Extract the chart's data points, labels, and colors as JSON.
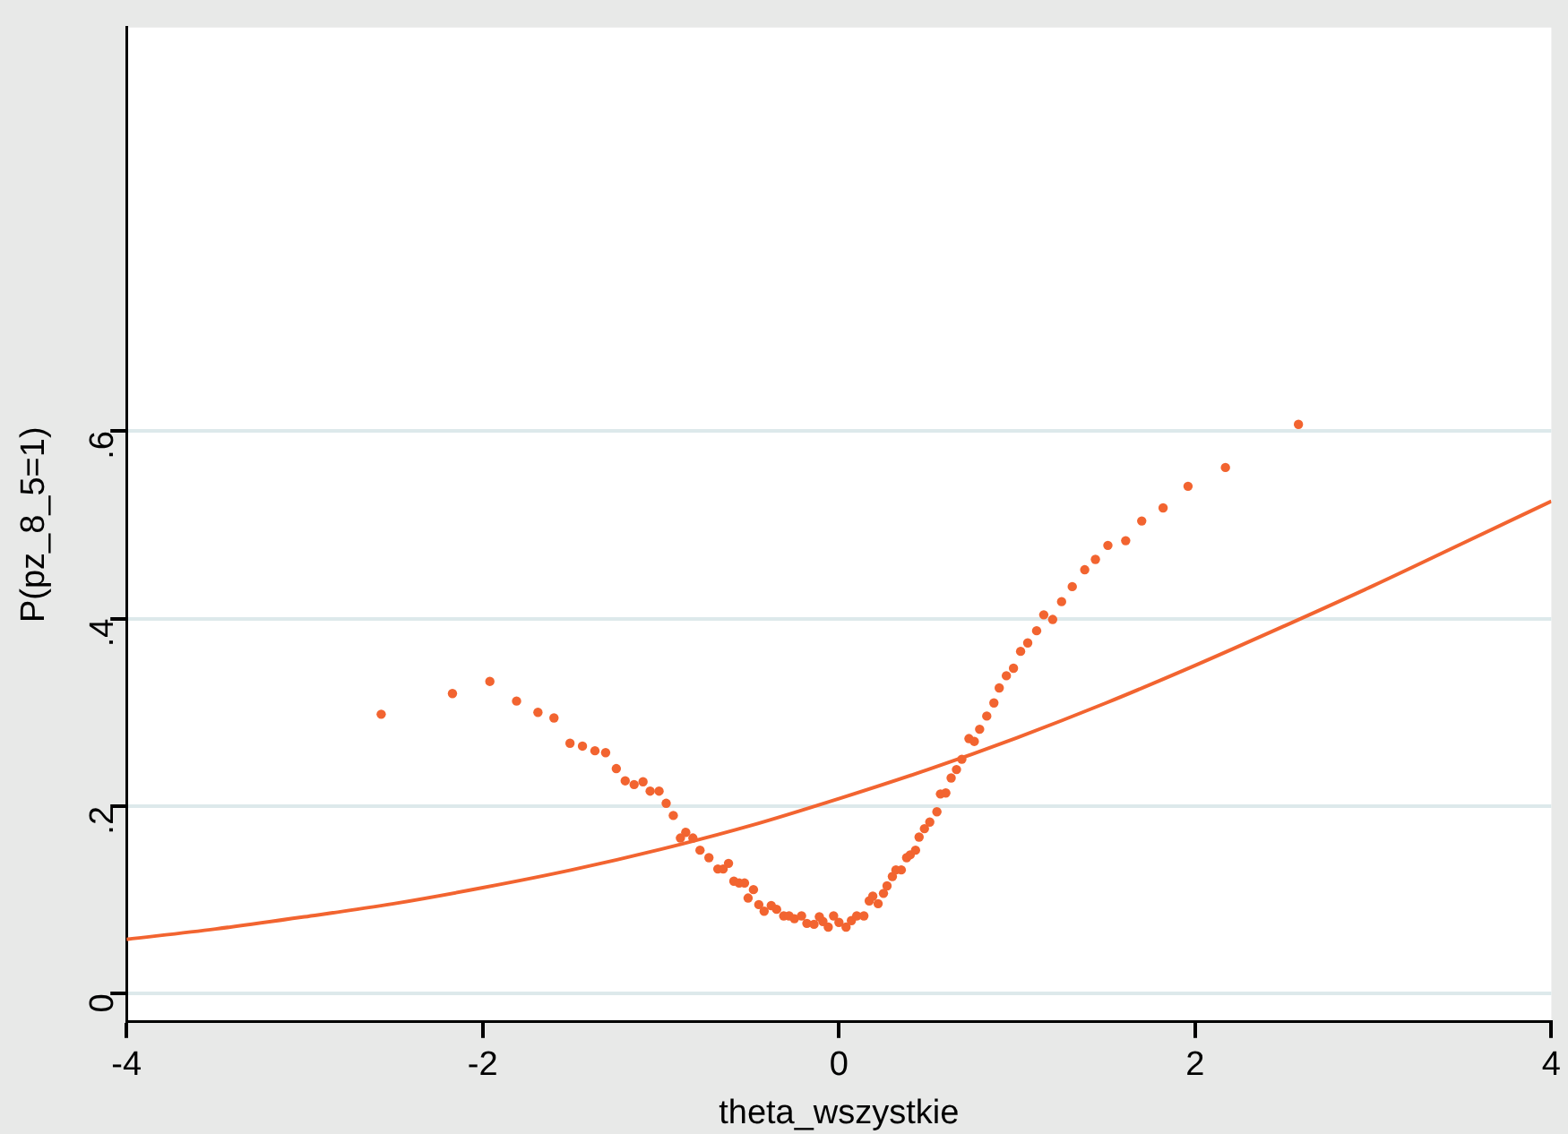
{
  "chart_data": {
    "type": "scatter",
    "xlabel": "theta_wszystkie",
    "ylabel": "P(pz_8_5=1)",
    "xlim": [
      -4,
      4
    ],
    "xticks": [
      -4,
      -2,
      0,
      2,
      4
    ],
    "ylim": [
      -0.03,
      1.03
    ],
    "yticks": [
      {
        "value": 0,
        "label": "0"
      },
      {
        "value": 0.2,
        "label": ".2"
      },
      {
        "value": 0.4,
        "label": ".4"
      },
      {
        "value": 0.6,
        "label": ".6"
      }
    ],
    "grid": "y",
    "legend": false,
    "series": [
      {
        "marker": "circle",
        "color": "#f26430",
        "x": [
          -2.57,
          -2.17,
          -1.96,
          -1.81,
          -1.69,
          -1.6,
          -1.51,
          -1.44,
          -1.37,
          -1.31,
          -1.25,
          -1.2,
          -1.15,
          -1.1,
          -1.06,
          -1.01,
          -0.97,
          -0.93,
          -0.89,
          -0.86,
          -0.82,
          -0.78,
          -0.73,
          -0.68,
          -0.65,
          -0.62,
          -0.59,
          -0.56,
          -0.53,
          -0.51,
          -0.48,
          -0.45,
          -0.42,
          -0.38,
          -0.35,
          -0.31,
          -0.28,
          -0.25,
          -0.21,
          -0.18,
          -0.14,
          -0.11,
          -0.09,
          -0.06,
          -0.03,
          0,
          0.04,
          0.07,
          0.1,
          0.14,
          0.17,
          0.19,
          0.22,
          0.25,
          0.27,
          0.3,
          0.32,
          0.35,
          0.38,
          0.4,
          0.43,
          0.45,
          0.48,
          0.51,
          0.55,
          0.57,
          0.6,
          0.63,
          0.66,
          0.69,
          0.73,
          0.76,
          0.79,
          0.83,
          0.87,
          0.9,
          0.94,
          0.98,
          1.02,
          1.06,
          1.11,
          1.15,
          1.2,
          1.25,
          1.31,
          1.38,
          1.44,
          1.51,
          1.61,
          1.7,
          1.82,
          1.96,
          2.17,
          2.58
        ],
        "values": [
          0.298,
          0.32,
          0.333,
          0.312,
          0.3,
          0.294,
          0.267,
          0.264,
          0.259,
          0.257,
          0.24,
          0.227,
          0.223,
          0.226,
          0.216,
          0.216,
          0.203,
          0.19,
          0.166,
          0.172,
          0.166,
          0.153,
          0.145,
          0.133,
          0.133,
          0.139,
          0.12,
          0.118,
          0.118,
          0.102,
          0.111,
          0.095,
          0.088,
          0.094,
          0.09,
          0.083,
          0.083,
          0.08,
          0.083,
          0.075,
          0.074,
          0.082,
          0.077,
          0.071,
          0.083,
          0.076,
          0.071,
          0.078,
          0.083,
          0.083,
          0.099,
          0.104,
          0.096,
          0.107,
          0.115,
          0.125,
          0.132,
          0.132,
          0.145,
          0.148,
          0.153,
          0.167,
          0.176,
          0.183,
          0.194,
          0.213,
          0.214,
          0.23,
          0.239,
          0.25,
          0.272,
          0.269,
          0.282,
          0.296,
          0.31,
          0.326,
          0.339,
          0.347,
          0.365,
          0.374,
          0.387,
          0.404,
          0.399,
          0.418,
          0.434,
          0.452,
          0.463,
          0.478,
          0.483,
          0.504,
          0.518,
          0.541,
          0.561,
          0.607
        ]
      },
      {
        "type": "line",
        "marker": "none",
        "line_style": "solid",
        "color": "#f26430",
        "x": [
          -4,
          -3.5,
          -3,
          -2.5,
          -2,
          -1.5,
          -1,
          -0.5,
          0,
          0.5,
          1,
          1.5,
          2,
          2.5,
          3,
          3.5,
          4
        ],
        "values": [
          0.058,
          0.069,
          0.082,
          0.096,
          0.113,
          0.132,
          0.154,
          0.179,
          0.208,
          0.239,
          0.273,
          0.31,
          0.35,
          0.392,
          0.435,
          0.48,
          0.525
        ]
      }
    ]
  }
}
